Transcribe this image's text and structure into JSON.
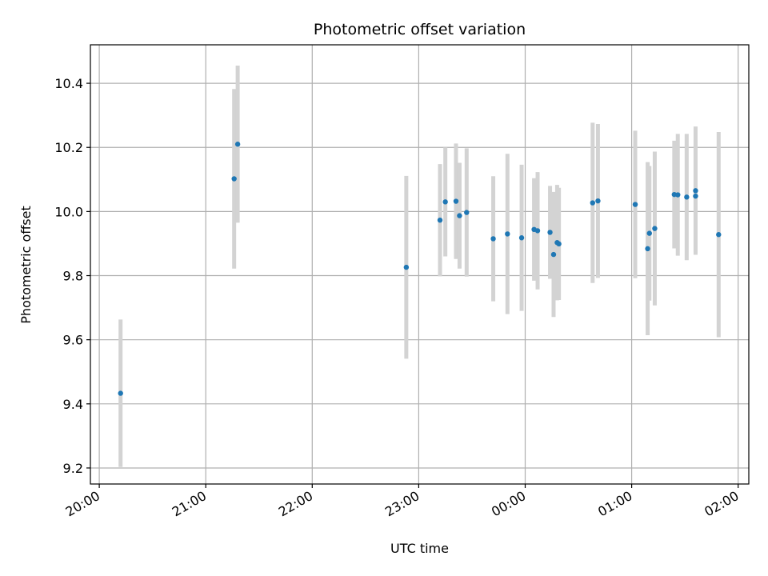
{
  "chart_data": {
    "type": "scatter",
    "title": "Photometric offset variation",
    "xlabel": "UTC time",
    "ylabel": "Photometric offset",
    "grid": true,
    "legend": "none",
    "x_unit": "UTC time (HH:MM, 20:00 to 02:00 next day)",
    "xlim": [
      "19:55",
      "02:06"
    ],
    "ylim": [
      9.15,
      10.52
    ],
    "x_ticks": [
      "20:00",
      "21:00",
      "22:00",
      "23:00",
      "00:00",
      "01:00",
      "02:00"
    ],
    "y_ticks": [
      "9.2",
      "9.4",
      "9.6",
      "9.8",
      "10.0",
      "10.2",
      "10.4"
    ],
    "colors": {
      "point": "#1f77b4",
      "errorbar": "#d3d3d3",
      "grid": "#b0b0b0"
    },
    "series": [
      {
        "points": [
          {
            "x": "20:12",
            "y": 9.433,
            "err": 0.23
          },
          {
            "x": "21:16",
            "y": 10.102,
            "err": 0.28
          },
          {
            "x": "21:18",
            "y": 10.21,
            "err": 0.245
          },
          {
            "x": "22:53",
            "y": 9.826,
            "err": 0.285
          },
          {
            "x": "23:12",
            "y": 9.973,
            "err": 0.175
          },
          {
            "x": "23:15",
            "y": 10.03,
            "err": 0.17
          },
          {
            "x": "23:21",
            "y": 10.032,
            "err": 0.18
          },
          {
            "x": "23:23",
            "y": 9.987,
            "err": 0.165
          },
          {
            "x": "23:27",
            "y": 9.997,
            "err": 0.2
          },
          {
            "x": "23:42",
            "y": 9.915,
            "err": 0.195
          },
          {
            "x": "23:50",
            "y": 9.93,
            "err": 0.25
          },
          {
            "x": "23:58",
            "y": 9.918,
            "err": 0.228
          },
          {
            "x": "00:05",
            "y": 9.944,
            "err": 0.16
          },
          {
            "x": "00:07",
            "y": 9.94,
            "err": 0.183
          },
          {
            "x": "00:14",
            "y": 9.935,
            "err": 0.145
          },
          {
            "x": "00:16",
            "y": 9.866,
            "err": 0.195
          },
          {
            "x": "00:18",
            "y": 9.903,
            "err": 0.18
          },
          {
            "x": "00:19",
            "y": 9.899,
            "err": 0.175
          },
          {
            "x": "00:38",
            "y": 10.027,
            "err": 0.25
          },
          {
            "x": "00:41",
            "y": 10.033,
            "err": 0.24
          },
          {
            "x": "01:02",
            "y": 10.022,
            "err": 0.23
          },
          {
            "x": "01:09",
            "y": 9.884,
            "err": 0.27
          },
          {
            "x": "01:10",
            "y": 9.932,
            "err": 0.21
          },
          {
            "x": "01:13",
            "y": 9.947,
            "err": 0.24
          },
          {
            "x": "01:24",
            "y": 10.053,
            "err": 0.168
          },
          {
            "x": "01:26",
            "y": 10.052,
            "err": 0.19
          },
          {
            "x": "01:31",
            "y": 10.045,
            "err": 0.197
          },
          {
            "x": "01:36",
            "y": 10.048,
            "err": 0.175
          },
          {
            "x": "01:36",
            "y": 10.065,
            "err": 0.2
          },
          {
            "x": "01:49",
            "y": 9.928,
            "err": 0.32
          }
        ]
      }
    ]
  }
}
